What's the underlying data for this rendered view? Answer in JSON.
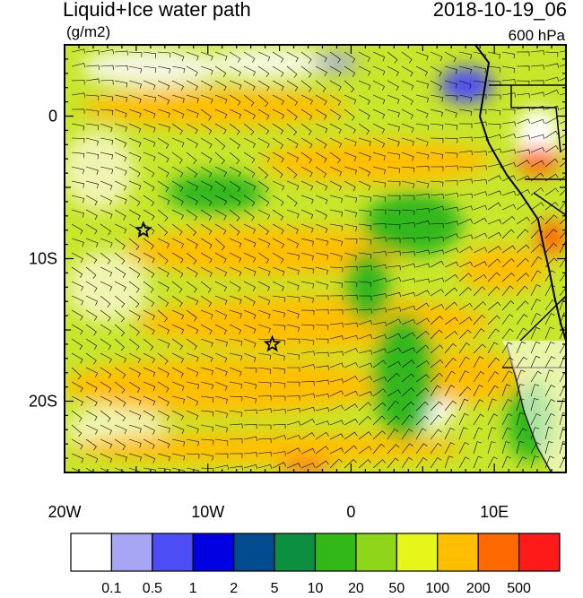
{
  "header": {
    "title": "Liquid+Ice water path",
    "units": "(g/m2)",
    "datetime": "2018-10-19_06",
    "level": "600 hPa"
  },
  "map": {
    "lon_range": [
      -20,
      15
    ],
    "lat_range": [
      -25,
      5
    ],
    "x_ticks": [
      {
        "lon": -20,
        "label": "20W"
      },
      {
        "lon": -10,
        "label": "10W"
      },
      {
        "lon": 0,
        "label": "0"
      },
      {
        "lon": 10,
        "label": "10E"
      }
    ],
    "y_ticks": [
      {
        "lat": 0,
        "label": "0"
      },
      {
        "lat": -10,
        "label": "10S"
      },
      {
        "lat": -20,
        "label": "20S"
      }
    ],
    "markers": [
      {
        "type": "star",
        "lon": -14.5,
        "lat": -8
      },
      {
        "type": "star",
        "lon": -5.5,
        "lat": -16
      }
    ]
  },
  "colorbar": {
    "colors": [
      "#ffffff",
      "#a6a6f5",
      "#4d4df5",
      "#0000e0",
      "#004c8f",
      "#0d8f40",
      "#33b81a",
      "#8fd61a",
      "#e6f51a",
      "#ffbf00",
      "#ff6a00",
      "#ff1a1a"
    ],
    "labels": [
      "0.1",
      "0.5",
      "1",
      "2",
      "5",
      "10",
      "20",
      "50",
      "100",
      "200",
      "500"
    ]
  }
}
